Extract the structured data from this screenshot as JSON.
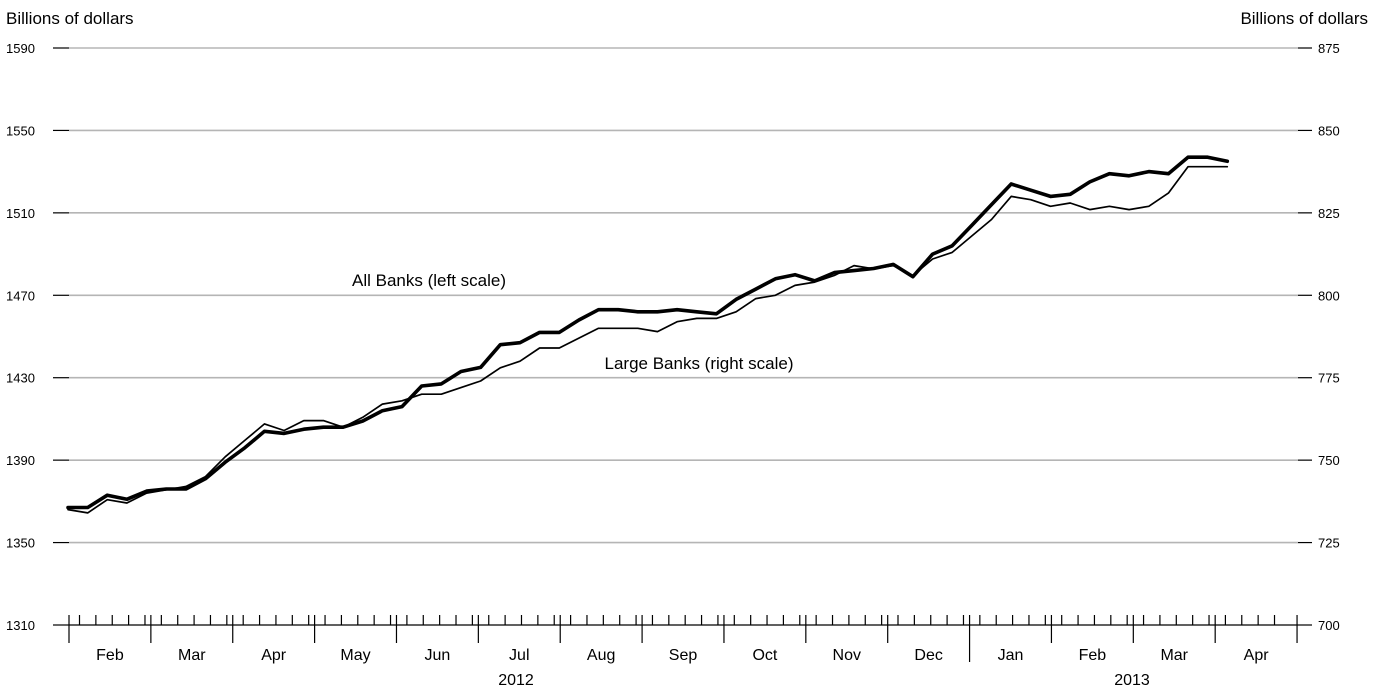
{
  "chart_data": {
    "type": "line",
    "y_left_label": "Billions of dollars",
    "y_right_label": "Billions of dollars",
    "y_left_range": [
      1310,
      1590
    ],
    "y_left_ticks": [
      1310,
      1350,
      1390,
      1430,
      1470,
      1510,
      1550,
      1590
    ],
    "y_right_range": [
      700,
      875
    ],
    "y_right_ticks": [
      700,
      725,
      750,
      775,
      800,
      825,
      850,
      875
    ],
    "grid": "horizontal",
    "month_labels": [
      "Feb",
      "Mar",
      "Apr",
      "May",
      "Jun",
      "Jul",
      "Aug",
      "Sep",
      "Oct",
      "Nov",
      "Dec",
      "Jan",
      "Feb",
      "Mar",
      "Apr"
    ],
    "year_labels": [
      "2012",
      "2013"
    ],
    "annotations": [
      "All Banks (left scale)",
      "Large Banks (right scale)"
    ],
    "series": [
      {
        "name": "All Banks (left scale)",
        "axis": "left",
        "style": "thick",
        "values": [
          1367,
          1367,
          1373,
          1371,
          1375,
          1376,
          1376,
          1381,
          1389,
          1396,
          1404,
          1403,
          1405,
          1406,
          1406,
          1409,
          1414,
          1416,
          1426,
          1427,
          1433,
          1435,
          1446,
          1447,
          1452,
          1452,
          1458,
          1463,
          1463,
          1462,
          1462,
          1463,
          1462,
          1461,
          1468,
          1473,
          1478,
          1480,
          1477,
          1481,
          1482,
          1483,
          1485,
          1479,
          1490,
          1494,
          1504,
          1514,
          1524,
          1521,
          1518,
          1519,
          1525,
          1529,
          1528,
          1530,
          1529,
          1537,
          1537,
          1535
        ]
      },
      {
        "name": "Large Banks (right scale)",
        "axis": "right",
        "style": "thin",
        "values": [
          735,
          734,
          738,
          737,
          740,
          741,
          742,
          745,
          751,
          756,
          761,
          759,
          762,
          762,
          760,
          763,
          767,
          768,
          770,
          770,
          772,
          774,
          778,
          780,
          784,
          784,
          787,
          790,
          790,
          790,
          789,
          792,
          793,
          793,
          795,
          799,
          800,
          803,
          804,
          806,
          809,
          808,
          809,
          806,
          811,
          813,
          818,
          823,
          830,
          829,
          827,
          828,
          826,
          827,
          826,
          827,
          831,
          839,
          839,
          839
        ]
      }
    ]
  }
}
